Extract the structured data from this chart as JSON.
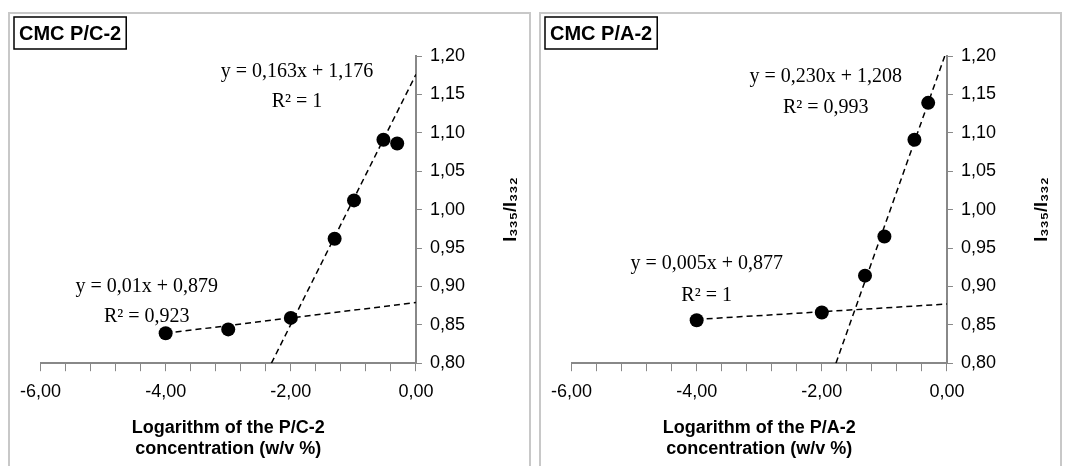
{
  "chart_data": [
    {
      "type": "scatter",
      "title": "CMC P/C-2",
      "xlabel": "Logarithm of the P/C-2 concentration (w/v %)",
      "ylabel": "I₃₃₅/I₃₃₂",
      "xlim": [
        -6,
        0
      ],
      "ylim": [
        0.8,
        1.2
      ],
      "xticks": [
        {
          "value": -6,
          "label": "-6,00"
        },
        {
          "value": -5.6,
          "label": null
        },
        {
          "value": -5.2,
          "label": null
        },
        {
          "value": -4.8,
          "label": null
        },
        {
          "value": -4.4,
          "label": null
        },
        {
          "value": -4,
          "label": "-4,00"
        },
        {
          "value": -3.6,
          "label": null
        },
        {
          "value": -3.2,
          "label": null
        },
        {
          "value": -2.8,
          "label": null
        },
        {
          "value": -2.4,
          "label": null
        },
        {
          "value": -2,
          "label": "-2,00"
        },
        {
          "value": -1.6,
          "label": null
        },
        {
          "value": -1.2,
          "label": null
        },
        {
          "value": -0.8,
          "label": null
        },
        {
          "value": -0.4,
          "label": null
        },
        {
          "value": 0,
          "label": "0,00"
        }
      ],
      "yticks": [
        {
          "value": 0.8,
          "label": "0,80"
        },
        {
          "value": 0.85,
          "label": "0,85"
        },
        {
          "value": 0.9,
          "label": "0,90"
        },
        {
          "value": 0.95,
          "label": "0,95"
        },
        {
          "value": 1,
          "label": "1,00"
        },
        {
          "value": 1.05,
          "label": "1,05"
        },
        {
          "value": 1.1,
          "label": "1,10"
        },
        {
          "value": 1.15,
          "label": "1,15"
        },
        {
          "value": 1.2,
          "label": "1,20"
        }
      ],
      "legend": false,
      "marker": "circle",
      "series": [
        {
          "color": "#000000",
          "x": [
            -4,
            -3,
            -2,
            -1.3,
            -0.99,
            -0.52,
            -0.3
          ],
          "values": [
            0.839,
            0.844,
            0.859,
            0.962,
            1.012,
            1.091,
            1.086
          ]
        },
        {
          "type": "line",
          "color": "#000000",
          "line_style": "dashed",
          "marker": "none",
          "x": [
            -4,
            0
          ],
          "values": [
            0.839,
            0.879
          ]
        },
        {
          "type": "line",
          "color": "#000000",
          "line_style": "dashed",
          "marker": "none",
          "x": [
            -2.31,
            0
          ],
          "values": [
            0.8,
            1.176
          ]
        }
      ],
      "annotations": [
        "y = 0,163x + 1,176",
        "R² = 1",
        "y = 0,01x + 0,879",
        "R² = 0,923"
      ]
    },
    {
      "type": "scatter",
      "title": "CMC P/A-2",
      "xlabel": "Logarithm of the P/A-2 concentration (w/v %)",
      "ylabel": "I₃₃₅/I₃₃₂",
      "xlim": [
        -6,
        0
      ],
      "ylim": [
        0.8,
        1.2
      ],
      "xticks": [
        {
          "value": -6,
          "label": "-6,00"
        },
        {
          "value": -5.6,
          "label": null
        },
        {
          "value": -5.2,
          "label": null
        },
        {
          "value": -4.8,
          "label": null
        },
        {
          "value": -4.4,
          "label": null
        },
        {
          "value": -4,
          "label": "-4,00"
        },
        {
          "value": -3.6,
          "label": null
        },
        {
          "value": -3.2,
          "label": null
        },
        {
          "value": -2.8,
          "label": null
        },
        {
          "value": -2.4,
          "label": null
        },
        {
          "value": -2,
          "label": "-2,00"
        },
        {
          "value": -1.6,
          "label": null
        },
        {
          "value": -1.2,
          "label": null
        },
        {
          "value": -0.8,
          "label": null
        },
        {
          "value": -0.4,
          "label": null
        },
        {
          "value": 0,
          "label": "0,00"
        }
      ],
      "yticks": [
        {
          "value": 0.8,
          "label": "0,80"
        },
        {
          "value": 0.85,
          "label": "0,85"
        },
        {
          "value": 0.9,
          "label": "0,90"
        },
        {
          "value": 0.95,
          "label": "0,95"
        },
        {
          "value": 1,
          "label": "1,00"
        },
        {
          "value": 1.05,
          "label": "1,05"
        },
        {
          "value": 1.1,
          "label": "1,10"
        },
        {
          "value": 1.15,
          "label": "1,15"
        },
        {
          "value": 1.2,
          "label": "1,20"
        }
      ],
      "legend": false,
      "marker": "circle",
      "series": [
        {
          "color": "#000000",
          "x": [
            -4,
            -2,
            -1.31,
            -1,
            -0.52,
            -0.3
          ],
          "values": [
            0.856,
            0.866,
            0.914,
            0.965,
            1.091,
            1.139
          ]
        },
        {
          "type": "line",
          "color": "#000000",
          "line_style": "dashed",
          "marker": "none",
          "x": [
            -4,
            0
          ],
          "values": [
            0.857,
            0.877
          ]
        },
        {
          "type": "line",
          "color": "#000000",
          "line_style": "dashed",
          "marker": "none",
          "x": [
            -1.774,
            -0.035
          ],
          "values": [
            0.8,
            1.2
          ]
        }
      ],
      "annotations": [
        "y = 0,230x + 1,208",
        "R² = 0,993",
        "y = 0,005x + 0,877",
        "R² = 1"
      ]
    }
  ]
}
